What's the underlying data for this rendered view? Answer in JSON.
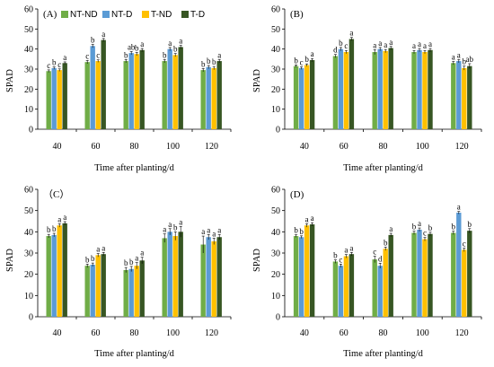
{
  "chart_data": [
    {
      "type": "bar",
      "panel_label": "(A)",
      "categories": [
        "40",
        "60",
        "80",
        "100",
        "120"
      ],
      "xlabel": "Time after planting/d",
      "ylabel": "SPAD",
      "ylim": [
        0,
        60
      ],
      "yticks": [
        "0",
        "10",
        "20",
        "30",
        "40",
        "50",
        "60"
      ],
      "legend": "top-left",
      "series": [
        {
          "name": "NT-ND",
          "color": "#70AD47",
          "values": [
            29,
            33.5,
            34,
            34,
            29.5
          ],
          "errors": [
            0.6,
            0.8,
            0.8,
            0.8,
            0.8
          ],
          "letters": [
            "c",
            "c",
            "b",
            "b",
            "b"
          ]
        },
        {
          "name": "NT-D",
          "color": "#5B9BD5",
          "values": [
            30.5,
            41.5,
            38,
            40,
            31
          ],
          "errors": [
            0.6,
            0.8,
            0.8,
            0.8,
            0.8
          ],
          "letters": [
            "b",
            "b",
            "ab",
            "a",
            "b"
          ]
        },
        {
          "name": "T-ND",
          "color": "#FFC000",
          "values": [
            29.5,
            34,
            37.5,
            37,
            30.5
          ],
          "errors": [
            0.6,
            0.6,
            0.8,
            0.8,
            0.8
          ],
          "letters": [
            "c",
            "c",
            "b",
            "b",
            "b"
          ]
        },
        {
          "name": "T-D",
          "color": "#375623",
          "values": [
            33,
            44.5,
            39.5,
            41,
            34
          ],
          "errors": [
            0.6,
            0.8,
            0.8,
            0.8,
            0.8
          ],
          "letters": [
            "a",
            "a",
            "a",
            "a",
            "a"
          ]
        }
      ]
    },
    {
      "type": "bar",
      "panel_label": "(B)",
      "categories": [
        "40",
        "60",
        "80",
        "100",
        "120"
      ],
      "xlabel": "Time after planting/d",
      "ylabel": "SPAD",
      "ylim": [
        0,
        60
      ],
      "yticks": [
        "0",
        "10",
        "20",
        "30",
        "40",
        "50",
        "60"
      ],
      "series": [
        {
          "name": "NT-ND",
          "color": "#70AD47",
          "values": [
            31.5,
            36.5,
            38.5,
            38.5,
            33
          ],
          "errors": [
            0.6,
            0.8,
            1.2,
            0.8,
            0.8
          ],
          "letters": [
            "b",
            "d",
            "a",
            "a",
            "a"
          ]
        },
        {
          "name": "NT-D",
          "color": "#5B9BD5",
          "values": [
            30.5,
            40,
            40,
            39.5,
            34
          ],
          "errors": [
            0.6,
            0.8,
            0.8,
            0.8,
            0.8
          ],
          "letters": [
            "c",
            "b",
            "a",
            "a",
            "a"
          ]
        },
        {
          "name": "T-ND",
          "color": "#FFC000",
          "values": [
            32,
            38.5,
            39,
            38.5,
            30.5
          ],
          "errors": [
            0.6,
            0.8,
            0.8,
            0.8,
            1.0
          ],
          "letters": [
            "b",
            "c",
            "a",
            "a",
            "b"
          ]
        },
        {
          "name": "T-D",
          "color": "#375623",
          "values": [
            34.5,
            45,
            40.5,
            39.5,
            31.5
          ],
          "errors": [
            0.8,
            0.8,
            0.8,
            0.8,
            1.2
          ],
          "letters": [
            "a",
            "a",
            "a",
            "a",
            "ab"
          ]
        }
      ]
    },
    {
      "type": "bar",
      "panel_label": "（C）",
      "categories": [
        "40",
        "60",
        "80",
        "100",
        "120"
      ],
      "xlabel": "Time after planting/d",
      "ylabel": "SPAD",
      "ylim": [
        0,
        60
      ],
      "yticks": [
        "0",
        "10",
        "20",
        "30",
        "40",
        "50",
        "60"
      ],
      "series": [
        {
          "name": "NT-ND",
          "color": "#70AD47",
          "values": [
            38,
            24,
            22,
            37,
            34
          ],
          "errors": [
            0.8,
            0.8,
            1.2,
            2.0,
            4.0
          ],
          "letters": [
            "b",
            "b",
            "b",
            "a",
            "a"
          ]
        },
        {
          "name": "NT-D",
          "color": "#5B9BD5",
          "values": [
            38.5,
            24.5,
            22.5,
            40,
            37.5
          ],
          "errors": [
            0.8,
            0.8,
            1.2,
            1.5,
            1.2
          ],
          "letters": [
            "b",
            "b",
            "b",
            "a",
            "a"
          ]
        },
        {
          "name": "T-ND",
          "color": "#FFC000",
          "values": [
            43,
            29,
            24,
            38,
            35.5
          ],
          "errors": [
            0.8,
            0.8,
            1.5,
            2.0,
            1.5
          ],
          "letters": [
            "a",
            "a",
            "a",
            "b",
            "a"
          ]
        },
        {
          "name": "T-D",
          "color": "#375623",
          "values": [
            44,
            29.5,
            26.5,
            40,
            37.5
          ],
          "errors": [
            0.8,
            0.8,
            1.5,
            2.5,
            1.2
          ],
          "letters": [
            "a",
            "a",
            "a",
            "a",
            "a"
          ]
        }
      ]
    },
    {
      "type": "bar",
      "panel_label": "(D)",
      "categories": [
        "40",
        "60",
        "80",
        "100",
        "120"
      ],
      "xlabel": "Time after planting/d",
      "ylabel": "SPAD",
      "ylim": [
        0,
        60
      ],
      "yticks": [
        "0",
        "10",
        "20",
        "30",
        "40",
        "50",
        "60"
      ],
      "series": [
        {
          "name": "NT-ND",
          "color": "#70AD47",
          "values": [
            38,
            26,
            27,
            39.5,
            39.5
          ],
          "errors": [
            0.6,
            0.8,
            1.5,
            0.8,
            0.8
          ],
          "letters": [
            "b",
            "b",
            "c",
            "b",
            "b"
          ]
        },
        {
          "name": "NT-D",
          "color": "#5B9BD5",
          "values": [
            37.5,
            24,
            24,
            41,
            49
          ],
          "errors": [
            0.6,
            0.8,
            1.2,
            0.8,
            0.6
          ],
          "letters": [
            "b",
            "c",
            "d",
            "a",
            "a"
          ]
        },
        {
          "name": "T-ND",
          "color": "#FFC000",
          "values": [
            43,
            28.5,
            32,
            36.5,
            31.5
          ],
          "errors": [
            0.8,
            0.8,
            0.8,
            0.8,
            0.8
          ],
          "letters": [
            "a",
            "a",
            "b",
            "c",
            "c"
          ]
        },
        {
          "name": "T-D",
          "color": "#375623",
          "values": [
            43.5,
            29.5,
            38.5,
            39,
            40.5
          ],
          "errors": [
            0.8,
            0.8,
            0.8,
            0.8,
            1.0
          ],
          "letters": [
            "a",
            "a",
            "a",
            "b",
            "b"
          ]
        }
      ]
    }
  ]
}
